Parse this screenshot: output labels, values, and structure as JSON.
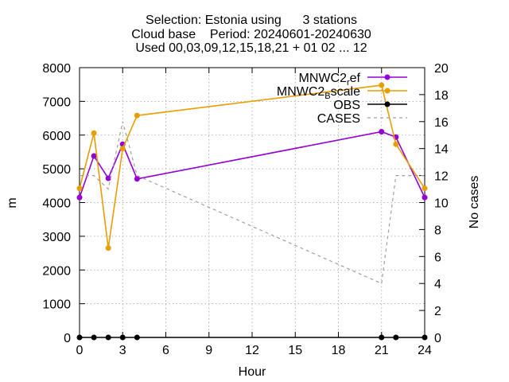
{
  "chart_data": {
    "type": "line",
    "title_lines": [
      "Selection: Estonia using      3 stations",
      "Cloud base    Period: 20240601-20240630",
      "Used 00,03,09,12,15,18,21 + 01 02 ... 12"
    ],
    "xlabel": "Hour",
    "ylabel": "m",
    "y2label": "No cases",
    "xlim": [
      0,
      24
    ],
    "ylim": [
      0,
      8000
    ],
    "y2lim": [
      0,
      20
    ],
    "xticks": [
      0,
      3,
      6,
      9,
      12,
      15,
      18,
      21,
      24
    ],
    "yticks": [
      0,
      1000,
      2000,
      3000,
      4000,
      5000,
      6000,
      7000,
      8000
    ],
    "y2ticks": [
      0,
      2,
      4,
      6,
      8,
      10,
      12,
      14,
      16,
      18,
      20
    ],
    "grid": true,
    "legend_position": "top-right",
    "series": [
      {
        "name": "MNWC2_ref",
        "legend_main": "MNWC2",
        "legend_sub": "r",
        "legend_tail": "ef",
        "color": "#9400d3",
        "axis": "y",
        "x": [
          0,
          1,
          2,
          3,
          4,
          21,
          22,
          24
        ],
        "y": [
          4150,
          5380,
          4720,
          5730,
          4700,
          6100,
          5940,
          4150
        ]
      },
      {
        "name": "MNWC2_Bscale",
        "legend_main": "MNWC2",
        "legend_sub": "B",
        "legend_tail": "scale",
        "color": "#e69f00",
        "axis": "y",
        "x": [
          0,
          1,
          2,
          3,
          4,
          21,
          22,
          24
        ],
        "y": [
          4420,
          6060,
          2650,
          5600,
          6580,
          7480,
          5730,
          4420
        ]
      },
      {
        "name": "OBS",
        "legend_main": "OBS",
        "color": "#000000",
        "axis": "y",
        "x": [
          0,
          1,
          2,
          3,
          4,
          21,
          22,
          24
        ],
        "y": [
          0,
          0,
          0,
          0,
          0,
          0,
          0,
          0
        ]
      },
      {
        "name": "CASES",
        "legend_main": "CASES",
        "color": "#a0a0a0",
        "dashed": true,
        "axis": "y2",
        "x": [
          0,
          1,
          2,
          3,
          4,
          21,
          22,
          24
        ],
        "y": [
          12,
          12,
          11,
          16,
          12,
          4,
          12,
          12
        ]
      }
    ]
  }
}
